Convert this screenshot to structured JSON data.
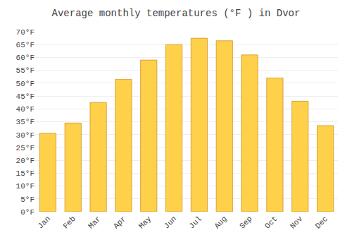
{
  "chart_data": {
    "type": "bar",
    "title": "Average monthly temperatures (°F ) in Dvor",
    "categories": [
      "Jan",
      "Feb",
      "Mar",
      "Apr",
      "May",
      "Jun",
      "Jul",
      "Aug",
      "Sep",
      "Oct",
      "Nov",
      "Dec"
    ],
    "values": [
      30.5,
      34.5,
      42.5,
      51.5,
      59.0,
      65.0,
      67.5,
      66.5,
      61.0,
      52.0,
      43.0,
      33.5
    ],
    "color": "#FFD04A",
    "ylim": [
      0,
      70
    ],
    "yticks": [
      {
        "value": 0,
        "label": "0°F"
      },
      {
        "value": 5,
        "label": "5°F"
      },
      {
        "value": 10,
        "label": "10°F"
      },
      {
        "value": 15,
        "label": "15°F"
      },
      {
        "value": 20,
        "label": "20°F"
      },
      {
        "value": 25,
        "label": "25°F"
      },
      {
        "value": 30,
        "label": "30°F"
      },
      {
        "value": 35,
        "label": "35°F"
      },
      {
        "value": 40,
        "label": "40°F"
      },
      {
        "value": 45,
        "label": "45°F"
      },
      {
        "value": 50,
        "label": "50°F"
      },
      {
        "value": 55,
        "label": "55°F"
      },
      {
        "value": 60,
        "label": "60°F"
      },
      {
        "value": 65,
        "label": "65°F"
      },
      {
        "value": 70,
        "label": "70°F"
      }
    ],
    "grid": true
  }
}
